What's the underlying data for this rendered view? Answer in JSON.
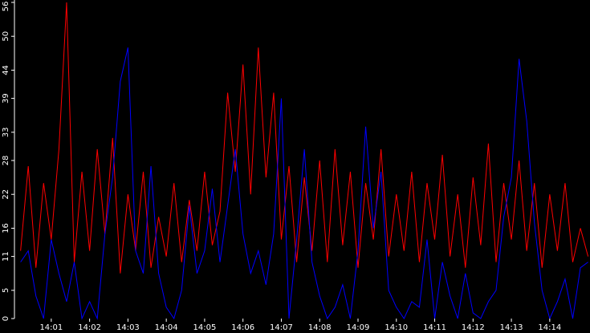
{
  "chart_data": {
    "type": "line",
    "x": [
      840.2,
      840.4,
      840.6,
      840.8,
      841.0,
      841.2,
      841.4,
      841.6,
      841.8,
      842.0,
      842.2,
      842.4,
      842.6,
      842.8,
      843.0,
      843.2,
      843.4,
      843.6,
      843.8,
      844.0,
      844.2,
      844.4,
      844.6,
      844.8,
      845.0,
      845.2,
      845.4,
      845.6,
      845.8,
      846.0,
      846.2,
      846.4,
      846.6,
      846.8,
      847.0,
      847.2,
      847.4,
      847.6,
      847.8,
      848.0,
      848.2,
      848.4,
      848.6,
      848.8,
      849.0,
      849.2,
      849.4,
      849.6,
      849.8,
      850.0,
      850.2,
      850.4,
      850.6,
      850.8,
      851.0,
      851.2,
      851.4,
      851.6,
      851.8,
      852.0,
      852.2,
      852.4,
      852.6,
      852.8,
      853.0,
      853.2,
      853.4,
      853.6,
      853.8,
      854.0,
      854.2,
      854.4,
      854.6,
      854.8,
      855.0
    ],
    "series": [
      {
        "color": "#ff0000",
        "values": [
          12,
          27,
          9,
          24,
          14,
          30,
          56,
          10,
          26,
          12,
          30,
          15,
          32,
          8,
          22,
          12,
          26,
          9,
          18,
          11,
          24,
          10,
          21,
          12,
          26,
          13,
          19,
          40,
          26,
          45,
          22,
          48,
          25,
          40,
          14,
          27,
          10,
          25,
          12,
          28,
          10,
          30,
          13,
          26,
          9,
          24,
          14,
          30,
          11,
          22,
          12,
          26,
          10,
          24,
          14,
          29,
          11,
          22,
          9,
          25,
          13,
          31,
          10,
          24,
          14,
          28,
          12,
          24,
          9,
          22,
          12,
          24,
          10,
          16,
          11
        ]
      },
      {
        "color": "#0000ff",
        "values": [
          10,
          12,
          4,
          0,
          14,
          8,
          3,
          10,
          0,
          3,
          0,
          15,
          25,
          42,
          48,
          12,
          8,
          27,
          8,
          2,
          0,
          5,
          20,
          8,
          12,
          23,
          10,
          20,
          30,
          15,
          8,
          12,
          6,
          15,
          39,
          0,
          14,
          30,
          10,
          4,
          0,
          2,
          6,
          0,
          12,
          34,
          16,
          26,
          5,
          2,
          0,
          3,
          2,
          14,
          0,
          10,
          4,
          0,
          8,
          1,
          0,
          3,
          5,
          18,
          25,
          46,
          35,
          17,
          5,
          0,
          3,
          7,
          0,
          9,
          10
        ]
      }
    ],
    "xlim": [
      840.04,
      855.05
    ],
    "xticks": [
      {
        "value": 841,
        "label": "14:01"
      },
      {
        "value": 842,
        "label": "14:02"
      },
      {
        "value": 843,
        "label": "14:03"
      },
      {
        "value": 844,
        "label": "14:04"
      },
      {
        "value": 845,
        "label": "14:05"
      },
      {
        "value": 846,
        "label": "14:06"
      },
      {
        "value": 847,
        "label": "14:07"
      },
      {
        "value": 848,
        "label": "14:08"
      },
      {
        "value": 849,
        "label": "14:09"
      },
      {
        "value": 850,
        "label": "14:10"
      },
      {
        "value": 851,
        "label": "14:11"
      },
      {
        "value": 852,
        "label": "14:12"
      },
      {
        "value": 853,
        "label": "14:13"
      },
      {
        "value": 854,
        "label": "14:14"
      }
    ],
    "ylim": [
      0,
      56
    ],
    "yticks": [
      0,
      5,
      11,
      16,
      22,
      28,
      33,
      39,
      44,
      50,
      56
    ]
  }
}
